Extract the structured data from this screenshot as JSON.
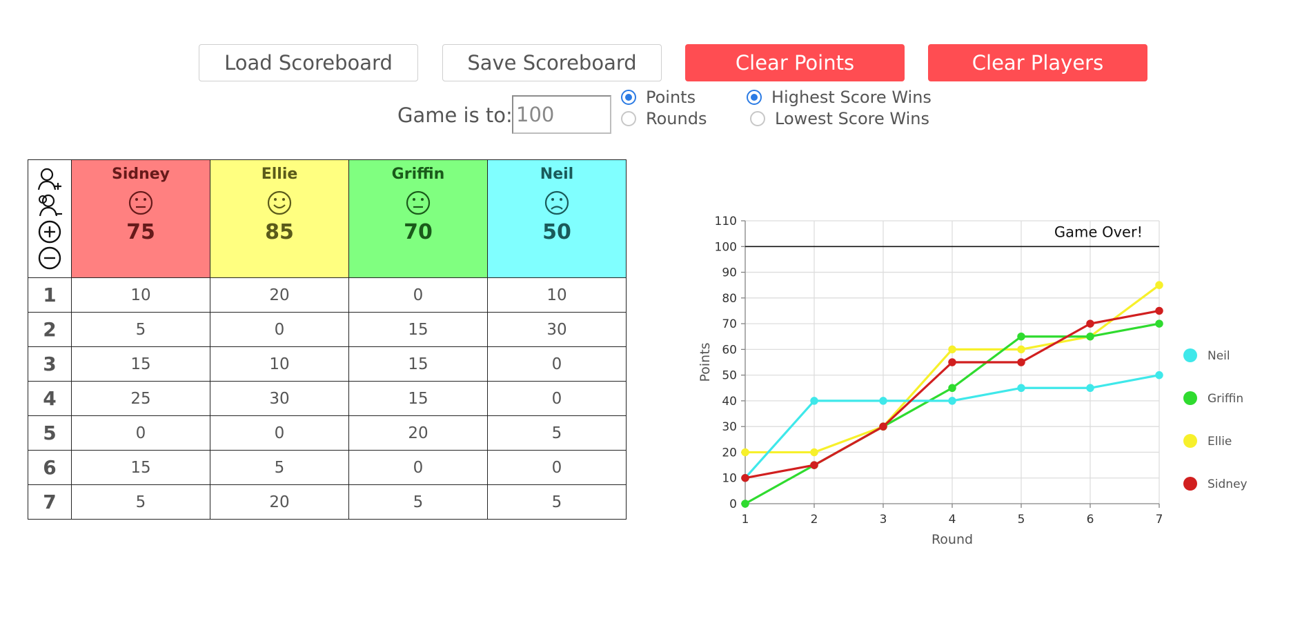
{
  "toolbar": {
    "load_label": "Load Scoreboard",
    "save_label": "Save Scoreboard",
    "clear_points_label": "Clear Points",
    "clear_players_label": "Clear Players"
  },
  "settings": {
    "game_to_label": "Game is to:",
    "game_to_value": "100",
    "mode_points": "Points",
    "mode_rounds": "Rounds",
    "mode_selected": "Points",
    "win_highest": "Highest Score Wins",
    "win_lowest": "Lowest Score Wins",
    "win_selected": "Highest Score Wins"
  },
  "players": [
    {
      "name": "Sidney",
      "total": "75",
      "face": "neutral-face-icon",
      "bg": "#ff8080",
      "fg": "#661a1a"
    },
    {
      "name": "Ellie",
      "total": "85",
      "face": "smile-face-icon",
      "bg": "#ffff80",
      "fg": "#5a5a1a"
    },
    {
      "name": "Griffin",
      "total": "70",
      "face": "neutral-face-icon",
      "bg": "#80ff80",
      "fg": "#1a5a1a"
    },
    {
      "name": "Neil",
      "total": "50",
      "face": "frown-face-icon",
      "bg": "#80ffff",
      "fg": "#1a5a5a"
    }
  ],
  "header_icons": [
    "add-player-icon",
    "remove-player-icon",
    "add-round-icon",
    "remove-round-icon"
  ],
  "rounds": [
    {
      "round": "1",
      "points": [
        "10",
        "20",
        "0",
        "10"
      ]
    },
    {
      "round": "2",
      "points": [
        "5",
        "0",
        "15",
        "30"
      ]
    },
    {
      "round": "3",
      "points": [
        "15",
        "10",
        "15",
        "0"
      ]
    },
    {
      "round": "4",
      "points": [
        "25",
        "30",
        "15",
        "0"
      ]
    },
    {
      "round": "5",
      "points": [
        "0",
        "0",
        "20",
        "5"
      ]
    },
    {
      "round": "6",
      "points": [
        "15",
        "5",
        "0",
        "0"
      ]
    },
    {
      "round": "7",
      "points": [
        "5",
        "20",
        "5",
        "5"
      ]
    }
  ],
  "chart_data": {
    "type": "line",
    "x": [
      1,
      2,
      3,
      4,
      5,
      6,
      7
    ],
    "xlabel": "Round",
    "ylabel": "Points",
    "ylim": [
      0,
      110
    ],
    "yticks": [
      0,
      10,
      20,
      30,
      40,
      50,
      60,
      70,
      80,
      90,
      100,
      110
    ],
    "grid": true,
    "goal_line": 100,
    "annotation": "Game Over!",
    "legend_position": "right",
    "series": [
      {
        "name": "Neil",
        "color": "#3fe8ea",
        "values": [
          10,
          40,
          40,
          40,
          45,
          45,
          50
        ]
      },
      {
        "name": "Griffin",
        "color": "#2fdb2f",
        "values": [
          0,
          15,
          30,
          45,
          65,
          65,
          70
        ]
      },
      {
        "name": "Ellie",
        "color": "#f7f02b",
        "values": [
          20,
          20,
          30,
          60,
          60,
          65,
          85
        ]
      },
      {
        "name": "Sidney",
        "color": "#d11f1f",
        "values": [
          10,
          15,
          30,
          55,
          55,
          70,
          75
        ]
      }
    ]
  }
}
